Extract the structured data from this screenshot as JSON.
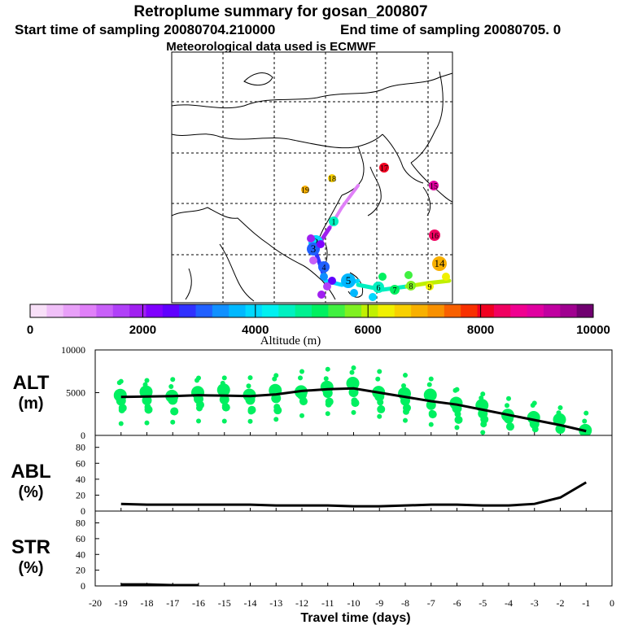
{
  "header": {
    "title": "Retroplume summary for gosan_200807",
    "start": "Start time of sampling 20080704.210000",
    "end": "End time of sampling 20080705.     0",
    "met": "Meteorological data used is ECMWF"
  },
  "colorbar": {
    "label": "Altitude (m)",
    "ticks": [
      "0",
      "2000",
      "4000",
      "6000",
      "8000",
      "10000"
    ],
    "range": [
      0,
      10000
    ],
    "colors": [
      "#f8e0f8",
      "#f0c0f8",
      "#e8a0f8",
      "#e080f8",
      "#c860f8",
      "#b040f8",
      "#a020f0",
      "#8000ff",
      "#6000ff",
      "#3030ff",
      "#2060ff",
      "#1090ff",
      "#00b8ff",
      "#00d8ff",
      "#00f0f0",
      "#00f0c0",
      "#00f090",
      "#00f060",
      "#40f040",
      "#80f020",
      "#c0f000",
      "#f0f000",
      "#f8d000",
      "#f8b000",
      "#f89000",
      "#f86000",
      "#f83000",
      "#f00020",
      "#f00060",
      "#f00090",
      "#e000a0",
      "#c000a0",
      "#a00090",
      "#700070"
    ]
  },
  "map": {
    "plume_points": [
      {
        "label": "1",
        "alt": 4500
      },
      {
        "label": "2",
        "alt": 3900
      },
      {
        "label": "3",
        "alt": 3200
      },
      {
        "label": "4",
        "alt": 3100
      },
      {
        "label": "5",
        "alt": 3800
      },
      {
        "label": "6",
        "alt": 4700
      },
      {
        "label": "7",
        "alt": 5200
      },
      {
        "label": "8",
        "alt": 5600
      },
      {
        "label": "9",
        "alt": 6300
      },
      {
        "label": "14",
        "alt": 6900
      },
      {
        "label": "16",
        "alt": 8400
      },
      {
        "label": "15",
        "alt": 8900
      },
      {
        "label": "17",
        "alt": 8100
      },
      {
        "label": "18",
        "alt": 6700
      },
      {
        "label": "19",
        "alt": 6800
      }
    ]
  },
  "chart_data": [
    {
      "type": "line",
      "panel": "ALT",
      "ylabel_line1": "ALT",
      "ylabel_line2": "(m)",
      "x": [
        -19,
        -18,
        -17,
        -16,
        -15,
        -14,
        -13,
        -12,
        -11,
        -10,
        -9,
        -8,
        -7,
        -6,
        -5,
        -4,
        -3,
        -2,
        -1
      ],
      "values": [
        4500,
        4550,
        4600,
        4700,
        4650,
        4600,
        4800,
        5200,
        5400,
        5500,
        5000,
        4500,
        4000,
        3600,
        3000,
        2400,
        1800,
        1200,
        500
      ],
      "yticks": [
        "0",
        "5000",
        "10000"
      ],
      "ylim": [
        0,
        10000
      ],
      "xlim": [
        -20,
        0
      ],
      "scatter_color": "#00f060"
    },
    {
      "type": "line",
      "panel": "ABL",
      "ylabel_line1": "ABL",
      "ylabel_line2": "(%)",
      "x": [
        -19,
        -18,
        -17,
        -16,
        -15,
        -14,
        -13,
        -12,
        -11,
        -10,
        -9,
        -8,
        -7,
        -6,
        -5,
        -4,
        -3,
        -2,
        -1
      ],
      "values": [
        9,
        8,
        8,
        8,
        8,
        8,
        7,
        7,
        7,
        6,
        6,
        7,
        8,
        8,
        7,
        7,
        9,
        17,
        36
      ],
      "yticks": [
        "0",
        "20",
        "40",
        "60",
        "80"
      ],
      "ylim": [
        0,
        95
      ],
      "xlim": [
        -20,
        0
      ]
    },
    {
      "type": "line",
      "panel": "STR",
      "ylabel_line1": "STR",
      "ylabel_line2": "(%)",
      "x": [
        -19,
        -18,
        -17,
        -16
      ],
      "values": [
        2,
        2,
        1,
        1
      ],
      "yticks": [
        "0",
        "20",
        "40",
        "60",
        "80"
      ],
      "ylim": [
        0,
        95
      ],
      "xlim": [
        -20,
        0
      ],
      "xticks": [
        "-20",
        "-19",
        "-18",
        "-17",
        "-16",
        "-15",
        "-14",
        "-13",
        "-12",
        "-11",
        "-10",
        "-9",
        "-8",
        "-7",
        "-6",
        "-5",
        "-4",
        "-3",
        "-2",
        "-1",
        "0"
      ],
      "xlabel": "Travel time (days)"
    }
  ]
}
